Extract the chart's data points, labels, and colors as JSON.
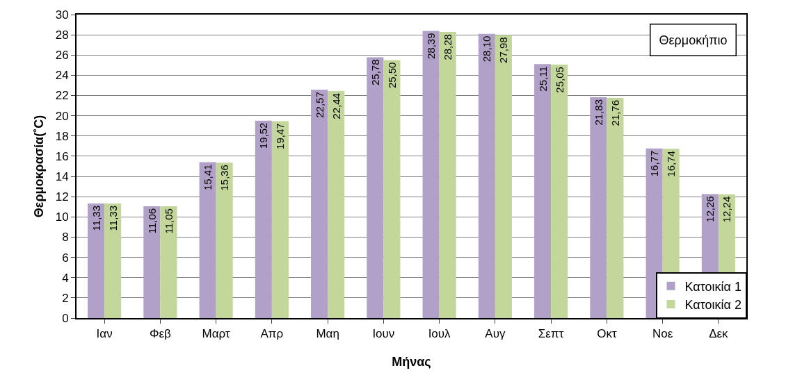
{
  "chart_data": {
    "type": "bar",
    "title": "Θερμοκήπιο",
    "xlabel": "Μήνας",
    "ylabel": "Θερμοκρασία(˚C)",
    "categories": [
      "Ιαν",
      "Φεβ",
      "Μαρτ",
      "Απρ",
      "Μαη",
      "Ιουν",
      "Ιουλ",
      "Αυγ",
      "Σεπτ",
      "Οκτ",
      "Νοε",
      "Δεκ"
    ],
    "series": [
      {
        "name": "Κατοικία 1",
        "color": "#b1a0c7",
        "values": [
          11.33,
          11.06,
          15.41,
          19.52,
          22.57,
          25.78,
          28.39,
          28.1,
          25.11,
          21.83,
          16.77,
          12.26
        ],
        "value_labels": [
          "11,33",
          "11,06",
          "15,41",
          "19,52",
          "22,57",
          "25,78",
          "28,39",
          "28,10",
          "25,11",
          "21,83",
          "16,77",
          "12,26"
        ]
      },
      {
        "name": "Κατοικία 2",
        "color": "#c4d79b",
        "values": [
          11.33,
          11.05,
          15.36,
          19.47,
          22.44,
          25.5,
          28.28,
          27.98,
          25.05,
          21.76,
          16.74,
          12.24
        ],
        "value_labels": [
          "11,33",
          "11,05",
          "15,36",
          "19,47",
          "22,44",
          "25,50",
          "28,28",
          "27,98",
          "25,05",
          "21,76",
          "16,74",
          "12,24"
        ]
      }
    ],
    "ylim": [
      0,
      30
    ],
    "yticks": [
      0,
      2,
      4,
      6,
      8,
      10,
      12,
      14,
      16,
      18,
      20,
      22,
      24,
      26,
      28,
      30
    ],
    "grid": "y",
    "legend": "bottom right"
  }
}
